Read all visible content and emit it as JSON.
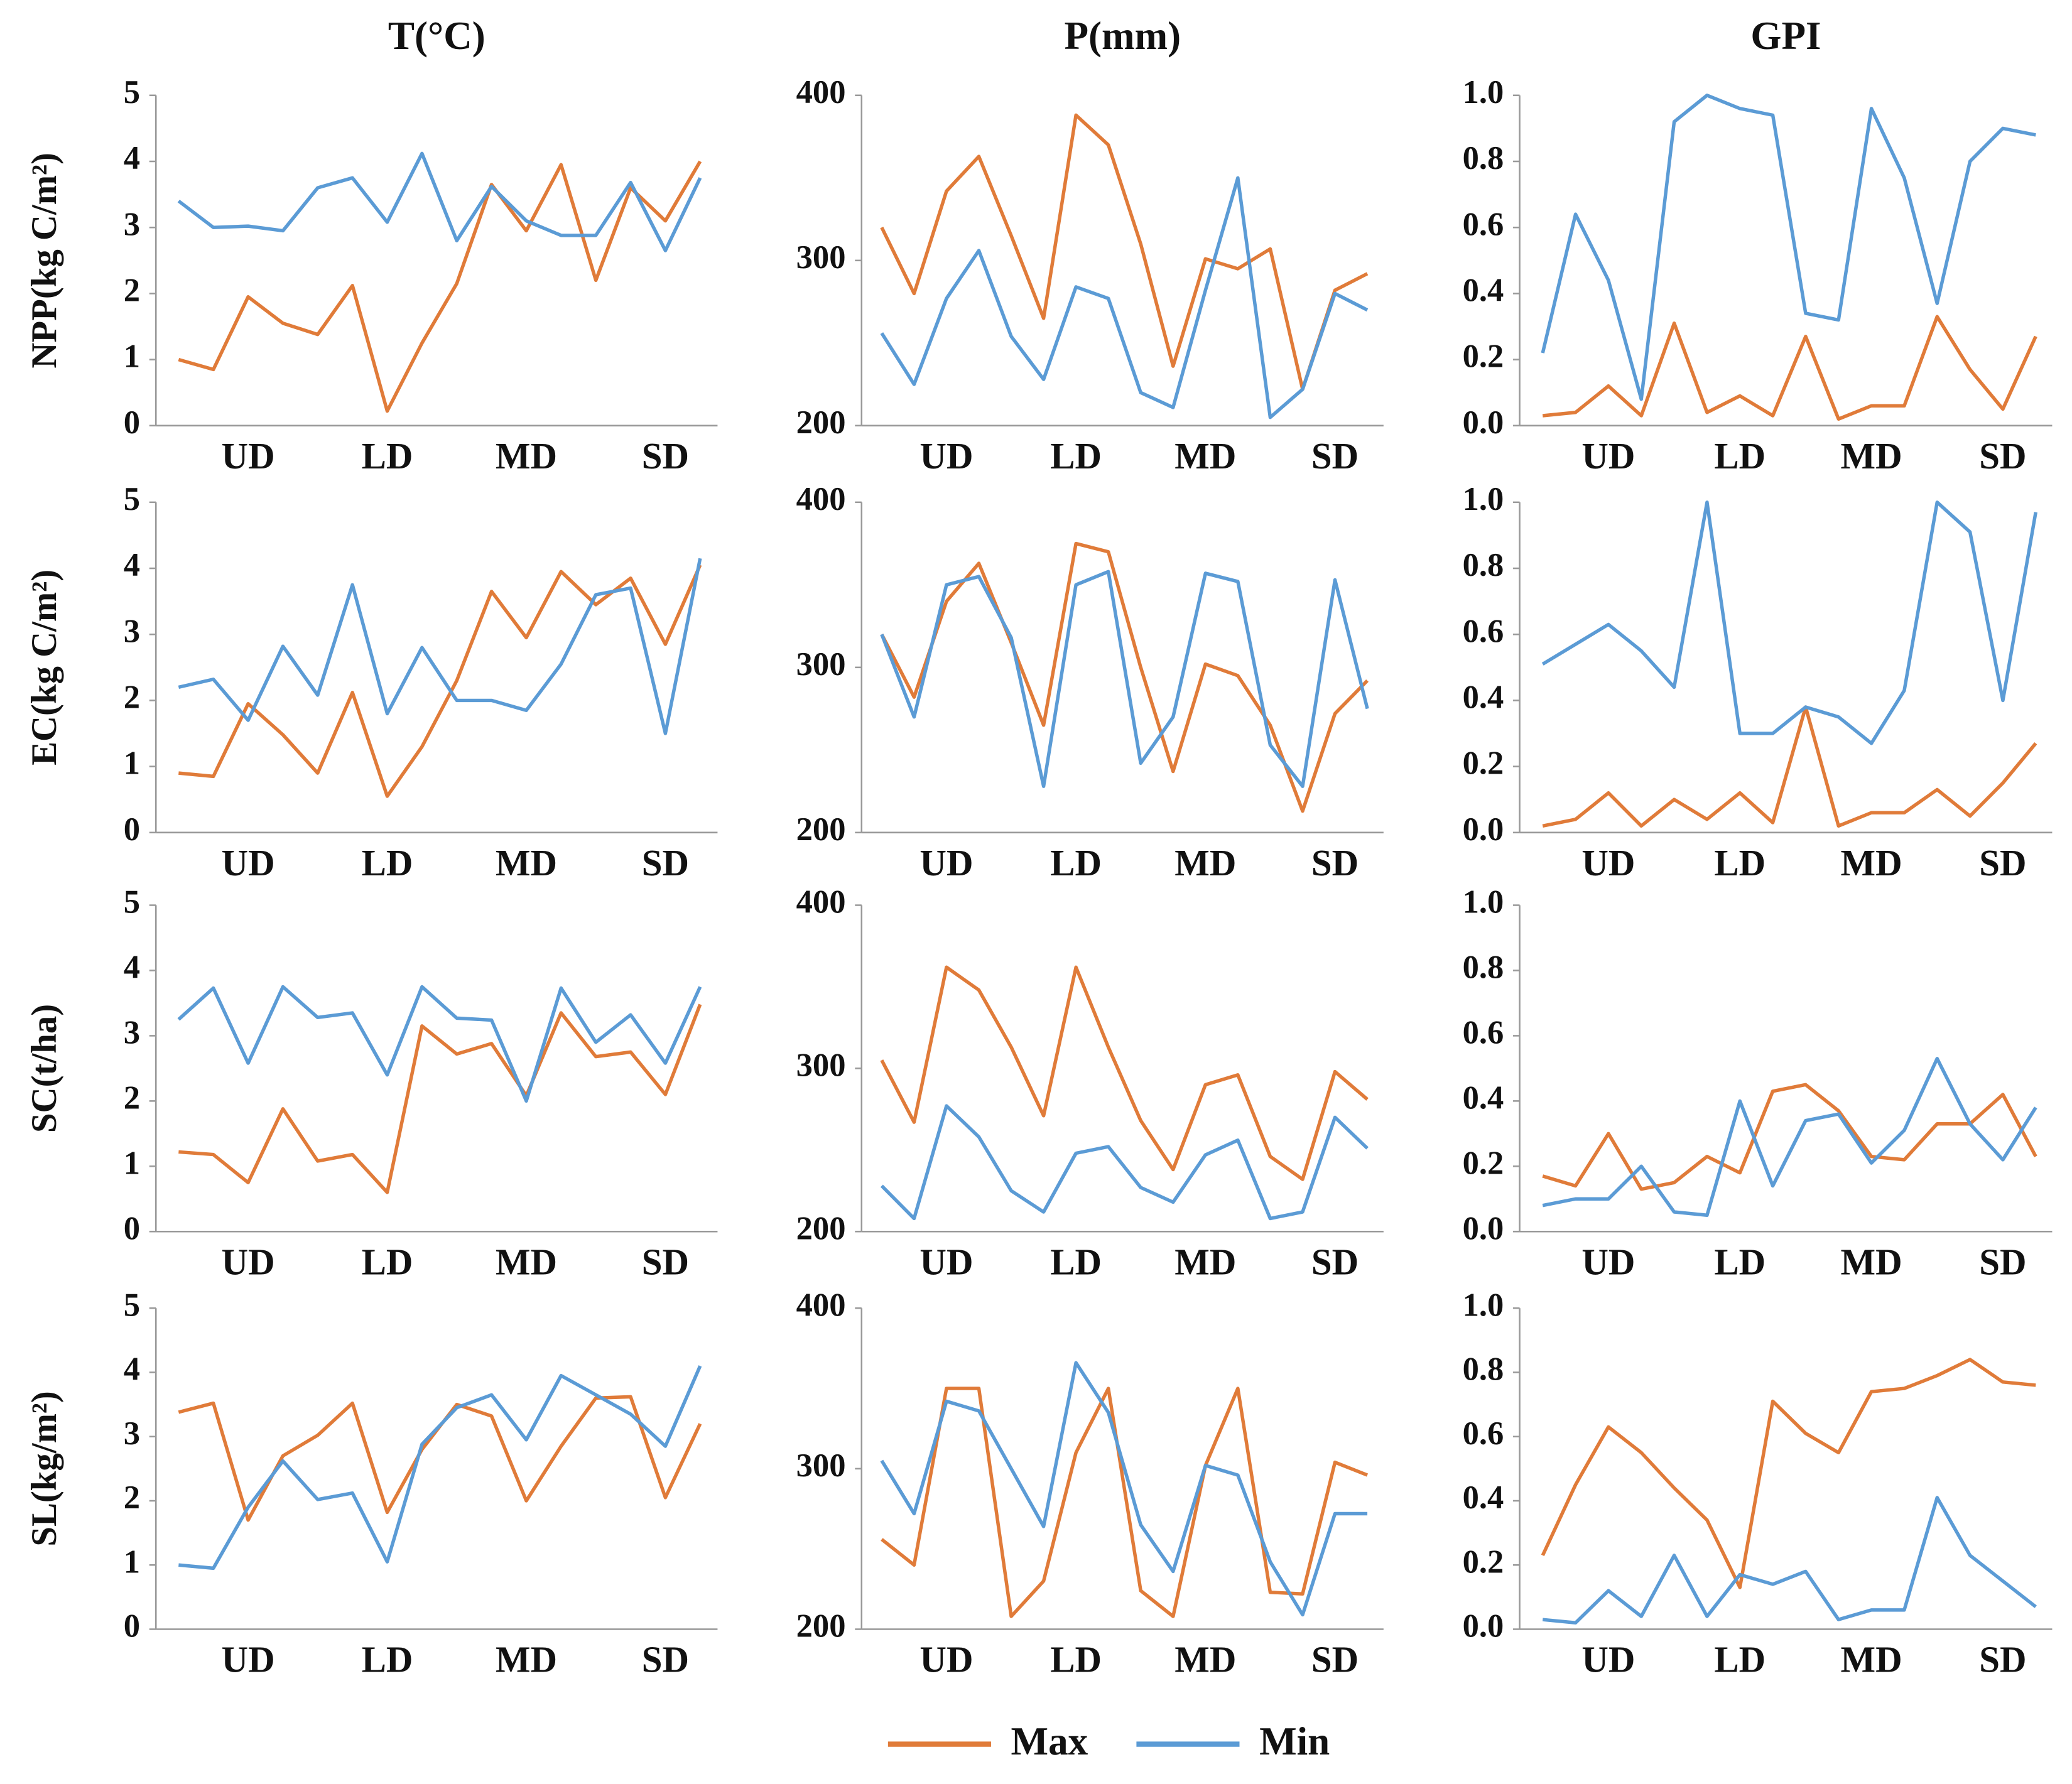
{
  "chart_data": [
    {
      "type": "line",
      "title": "T(°C)",
      "ylabel": "NPP(kg C/m²)",
      "categories": [
        null,
        null,
        "UD",
        null,
        null,
        null,
        "LD",
        null,
        null,
        null,
        "MD",
        null,
        null,
        null,
        "SD",
        null
      ],
      "ylim": [
        0,
        5
      ],
      "yticks": [
        0,
        1,
        2,
        3,
        4,
        5
      ],
      "series": [
        {
          "name": "Max",
          "color": "#e07b39",
          "values": [
            1.0,
            0.85,
            1.95,
            1.55,
            1.38,
            2.12,
            0.22,
            1.25,
            2.15,
            3.65,
            2.95,
            3.95,
            2.2,
            3.6,
            3.1,
            4.0
          ]
        },
        {
          "name": "Min",
          "color": "#5b9bd5",
          "values": [
            3.4,
            3.0,
            3.02,
            2.95,
            3.6,
            3.75,
            3.08,
            4.12,
            2.8,
            3.62,
            3.1,
            2.88,
            2.88,
            3.68,
            2.65,
            3.75
          ]
        }
      ]
    },
    {
      "type": "line",
      "title": "P(mm)",
      "categories": [
        null,
        null,
        "UD",
        null,
        null,
        null,
        "LD",
        null,
        null,
        null,
        "MD",
        null,
        null,
        null,
        "SD",
        null
      ],
      "ylim": [
        200,
        400
      ],
      "yticks": [
        200,
        300,
        400
      ],
      "series": [
        {
          "color": "#e07b39",
          "values": [
            320,
            280,
            342,
            363,
            315,
            265,
            388,
            370,
            310,
            236,
            301,
            295,
            307,
            222,
            282,
            292
          ]
        },
        {
          "color": "#5b9bd5",
          "values": [
            256,
            225,
            277,
            306,
            254,
            228,
            284,
            277,
            220,
            211,
            282,
            350,
            205,
            222,
            280,
            270
          ]
        }
      ]
    },
    {
      "type": "line",
      "title": "GPI",
      "categories": [
        null,
        null,
        "UD",
        null,
        null,
        null,
        "LD",
        null,
        null,
        null,
        "MD",
        null,
        null,
        null,
        "SD",
        null
      ],
      "ylim": [
        0,
        1
      ],
      "yticks": [
        {
          "value": 0,
          "label": "0.0"
        },
        0.2,
        0.4,
        0.6,
        0.8,
        {
          "value": 1,
          "label": "1.0"
        }
      ],
      "series": [
        {
          "color": "#e07b39",
          "values": [
            0.03,
            0.04,
            0.12,
            0.03,
            0.31,
            0.04,
            0.09,
            0.03,
            0.27,
            0.02,
            0.06,
            0.06,
            0.33,
            0.17,
            0.05,
            0.27
          ]
        },
        {
          "color": "#5b9bd5",
          "values": [
            0.22,
            0.64,
            0.44,
            0.08,
            0.92,
            1.0,
            0.96,
            0.94,
            0.34,
            0.32,
            0.96,
            0.75,
            0.37,
            0.8,
            0.9,
            0.88
          ]
        }
      ]
    },
    {
      "type": "line",
      "ylabel": "EC(kg C/m²)",
      "categories": [
        null,
        null,
        "UD",
        null,
        null,
        null,
        "LD",
        null,
        null,
        null,
        "MD",
        null,
        null,
        null,
        "SD",
        null
      ],
      "ylim": [
        0,
        5
      ],
      "yticks": [
        0,
        1,
        2,
        3,
        4,
        5
      ],
      "series": [
        {
          "color": "#e07b39",
          "values": [
            0.9,
            0.85,
            1.95,
            1.48,
            0.9,
            2.12,
            0.55,
            1.3,
            2.3,
            3.65,
            2.95,
            3.95,
            3.45,
            3.85,
            2.85,
            4.05
          ]
        },
        {
          "color": "#5b9bd5",
          "values": [
            2.2,
            2.32,
            1.7,
            2.82,
            2.08,
            3.75,
            1.8,
            2.8,
            2.0,
            2.0,
            1.85,
            2.55,
            3.6,
            3.7,
            1.5,
            4.15
          ]
        }
      ]
    },
    {
      "type": "line",
      "categories": [
        null,
        null,
        "UD",
        null,
        null,
        null,
        "LD",
        null,
        null,
        null,
        "MD",
        null,
        null,
        null,
        "SD",
        null
      ],
      "ylim": [
        200,
        400
      ],
      "yticks": [
        200,
        300,
        400
      ],
      "series": [
        {
          "color": "#e07b39",
          "values": [
            320,
            282,
            340,
            363,
            315,
            265,
            375,
            370,
            300,
            237,
            302,
            295,
            265,
            213,
            272,
            292
          ]
        },
        {
          "color": "#5b9bd5",
          "values": [
            320,
            270,
            350,
            355,
            318,
            228,
            350,
            358,
            242,
            270,
            357,
            352,
            253,
            228,
            353,
            275
          ]
        }
      ]
    },
    {
      "type": "line",
      "categories": [
        null,
        null,
        "UD",
        null,
        null,
        null,
        "LD",
        null,
        null,
        null,
        "MD",
        null,
        null,
        null,
        "SD",
        null
      ],
      "ylim": [
        0,
        1
      ],
      "yticks": [
        {
          "value": 0,
          "label": "0.0"
        },
        0.2,
        0.4,
        0.6,
        0.8,
        {
          "value": 1,
          "label": "1.0"
        }
      ],
      "series": [
        {
          "color": "#e07b39",
          "values": [
            0.02,
            0.04,
            0.12,
            0.02,
            0.1,
            0.04,
            0.12,
            0.03,
            0.38,
            0.02,
            0.06,
            0.06,
            0.13,
            0.05,
            0.15,
            0.27
          ]
        },
        {
          "color": "#5b9bd5",
          "values": [
            0.51,
            0.57,
            0.63,
            0.55,
            0.44,
            1.0,
            0.3,
            0.3,
            0.38,
            0.35,
            0.27,
            0.43,
            1.0,
            0.91,
            0.4,
            0.97
          ]
        }
      ]
    },
    {
      "type": "line",
      "ylabel": "SC(t/ha)",
      "categories": [
        null,
        null,
        "UD",
        null,
        null,
        null,
        "LD",
        null,
        null,
        null,
        "MD",
        null,
        null,
        null,
        "SD",
        null
      ],
      "ylim": [
        0,
        5
      ],
      "yticks": [
        0,
        1,
        2,
        3,
        4,
        5
      ],
      "series": [
        {
          "color": "#e07b39",
          "values": [
            1.22,
            1.18,
            0.75,
            1.88,
            1.08,
            1.18,
            0.6,
            3.15,
            2.72,
            2.88,
            2.08,
            3.35,
            2.68,
            2.75,
            2.1,
            3.48
          ]
        },
        {
          "color": "#5b9bd5",
          "values": [
            3.25,
            3.73,
            2.58,
            3.75,
            3.28,
            3.35,
            2.4,
            3.75,
            3.27,
            3.24,
            2.0,
            3.73,
            2.9,
            3.32,
            2.58,
            3.75
          ]
        }
      ]
    },
    {
      "type": "line",
      "categories": [
        null,
        null,
        "UD",
        null,
        null,
        null,
        "LD",
        null,
        null,
        null,
        "MD",
        null,
        null,
        null,
        "SD",
        null
      ],
      "ylim": [
        200,
        400
      ],
      "yticks": [
        200,
        300,
        400
      ],
      "series": [
        {
          "color": "#e07b39",
          "values": [
            305,
            267,
            362,
            348,
            313,
            271,
            362,
            313,
            268,
            238,
            290,
            296,
            246,
            232,
            298,
            281
          ]
        },
        {
          "color": "#5b9bd5",
          "values": [
            228,
            208,
            277,
            258,
            225,
            212,
            248,
            252,
            227,
            218,
            247,
            256,
            208,
            212,
            270,
            251
          ]
        }
      ]
    },
    {
      "type": "line",
      "categories": [
        null,
        null,
        "UD",
        null,
        null,
        null,
        "LD",
        null,
        null,
        null,
        "MD",
        null,
        null,
        null,
        "SD",
        null
      ],
      "ylim": [
        0,
        1
      ],
      "yticks": [
        {
          "value": 0,
          "label": "0.0"
        },
        0.2,
        0.4,
        0.6,
        0.8,
        {
          "value": 1,
          "label": "1.0"
        }
      ],
      "series": [
        {
          "color": "#e07b39",
          "values": [
            0.17,
            0.14,
            0.3,
            0.13,
            0.15,
            0.23,
            0.18,
            0.43,
            0.45,
            0.37,
            0.23,
            0.22,
            0.33,
            0.33,
            0.42,
            0.23
          ]
        },
        {
          "color": "#5b9bd5",
          "values": [
            0.08,
            0.1,
            0.1,
            0.2,
            0.06,
            0.05,
            0.4,
            0.14,
            0.34,
            0.36,
            0.21,
            0.31,
            0.53,
            0.33,
            0.22,
            0.38
          ]
        }
      ]
    },
    {
      "type": "line",
      "ylabel": "SL(kg/m²)",
      "categories": [
        null,
        null,
        "UD",
        null,
        null,
        null,
        "LD",
        null,
        null,
        null,
        "MD",
        null,
        null,
        null,
        "SD",
        null
      ],
      "ylim": [
        0,
        5
      ],
      "yticks": [
        0,
        1,
        2,
        3,
        4,
        5
      ],
      "series": [
        {
          "color": "#e07b39",
          "values": [
            3.38,
            3.52,
            1.7,
            2.7,
            3.02,
            3.52,
            1.82,
            2.8,
            3.5,
            3.32,
            2.0,
            2.85,
            3.6,
            3.62,
            2.05,
            3.2
          ]
        },
        {
          "color": "#5b9bd5",
          "values": [
            1.0,
            0.95,
            1.9,
            2.62,
            2.02,
            2.12,
            1.05,
            2.88,
            3.45,
            3.65,
            2.95,
            3.95,
            3.65,
            3.35,
            2.85,
            4.1
          ]
        }
      ]
    },
    {
      "type": "line",
      "categories": [
        null,
        null,
        "UD",
        null,
        null,
        null,
        "LD",
        null,
        null,
        null,
        "MD",
        null,
        null,
        null,
        "SD",
        null
      ],
      "ylim": [
        200,
        400
      ],
      "yticks": [
        200,
        300,
        400
      ],
      "series": [
        {
          "color": "#e07b39",
          "values": [
            256,
            240,
            350,
            350,
            208,
            230,
            310,
            350,
            224,
            208,
            302,
            350,
            223,
            222,
            304,
            296
          ]
        },
        {
          "color": "#5b9bd5",
          "values": [
            305,
            272,
            342,
            336,
            300,
            264,
            366,
            335,
            265,
            236,
            302,
            296,
            242,
            209,
            272,
            272
          ]
        }
      ]
    },
    {
      "type": "line",
      "categories": [
        null,
        null,
        "UD",
        null,
        null,
        null,
        "LD",
        null,
        null,
        null,
        "MD",
        null,
        null,
        null,
        "SD",
        null
      ],
      "ylim": [
        0,
        1
      ],
      "yticks": [
        {
          "value": 0,
          "label": "0.0"
        },
        0.2,
        0.4,
        0.6,
        0.8,
        {
          "value": 1,
          "label": "1.0"
        }
      ],
      "series": [
        {
          "color": "#e07b39",
          "values": [
            0.23,
            0.45,
            0.63,
            0.55,
            0.44,
            0.34,
            0.13,
            0.71,
            0.61,
            0.55,
            0.74,
            0.75,
            0.79,
            0.84,
            0.77,
            0.76
          ]
        },
        {
          "color": "#5b9bd5",
          "values": [
            0.03,
            0.02,
            0.12,
            0.04,
            0.23,
            0.04,
            0.17,
            0.14,
            0.18,
            0.03,
            0.06,
            0.06,
            0.41,
            0.23,
            0.15,
            0.07
          ]
        }
      ]
    }
  ]
}
